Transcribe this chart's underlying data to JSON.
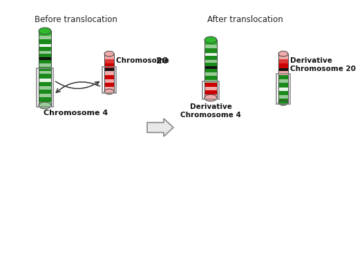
{
  "title_before": "Before translocation",
  "title_after": "After translocation",
  "label_chr4": "Chromosome 4",
  "label_chr20": "Chromosome 20",
  "label_der4": "Derivative\nChromosome 4",
  "label_der20": "Derivative\nChromosome 20",
  "bg_color": "#ffffff",
  "green_dark": "#1a8a1a",
  "green_mid": "#2db82d",
  "green_light": "#99cc99",
  "green_pale": "#cceecc",
  "green_white": "#e8f5e8",
  "red_dark": "#cc0000",
  "red_mid": "#dd3333",
  "red_light": "#f0aaaa",
  "red_pale": "#fce8e8",
  "centromere_color": "#111111",
  "box_color": "#888888"
}
